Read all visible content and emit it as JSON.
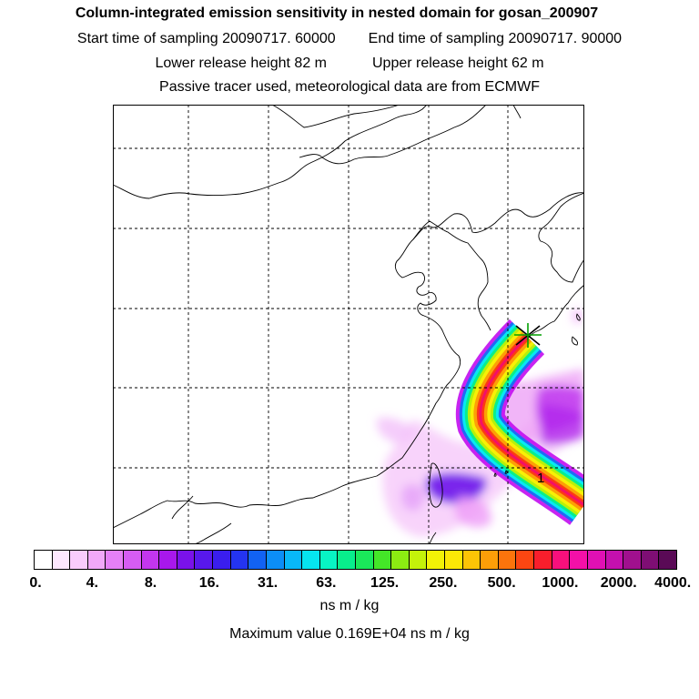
{
  "header": {
    "title": "Column-integrated emission sensitivity in nested domain for gosan_200907",
    "start_label": "Start time of sampling 20090717. 60000",
    "end_label": "End time of sampling 20090717. 90000",
    "lower_label": "Lower release height   82 m",
    "upper_label": "Upper release height   62 m",
    "tracer_note": "Passive tracer used, meteorological data are from ECMWF"
  },
  "map": {
    "release_marker_label": "1",
    "colors": {
      "land_line": "#000000",
      "grid": "#000000"
    }
  },
  "colorbar": {
    "colors": [
      "#ffffff",
      "#fde8fe",
      "#f9ccfc",
      "#f1a8f8",
      "#e580f6",
      "#d65cf4",
      "#c336ee",
      "#a818ec",
      "#7a12ea",
      "#5818ec",
      "#3a1eee",
      "#2434f0",
      "#1262f2",
      "#0c8ef6",
      "#08b8f8",
      "#06e4f0",
      "#08f4c4",
      "#08ee8c",
      "#1ae85a",
      "#44e628",
      "#8cec12",
      "#c4f20a",
      "#f2f206",
      "#fce806",
      "#fcc406",
      "#fc9e08",
      "#fc740c",
      "#fc4612",
      "#f81e2c",
      "#f8107c",
      "#f410a8",
      "#e010b4",
      "#c410ae",
      "#a0108e",
      "#7e0e74",
      "#5a0a56"
    ],
    "ticks": [
      "0.",
      "4.",
      "8.",
      "16.",
      "31.",
      "63.",
      "125.",
      "250.",
      "500.",
      "1000.",
      "2000.",
      "4000."
    ],
    "units": "ns m / kg"
  },
  "footer": {
    "maximum": "Maximum value  0.169E+04 ns m / kg"
  }
}
